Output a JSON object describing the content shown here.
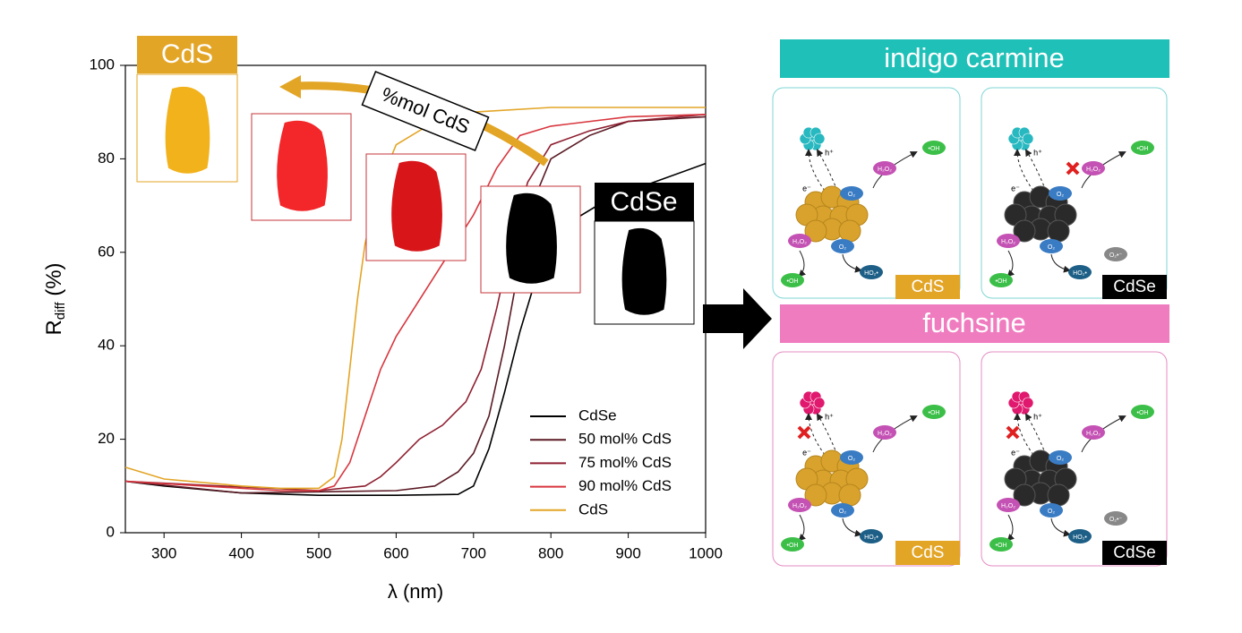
{
  "chart_data": {
    "type": "line",
    "xlabel": "λ (nm)",
    "ylabel": {
      "main": "R",
      "sub": "diff",
      "unit": " (%)"
    },
    "xlim": [
      250,
      1000
    ],
    "xticks": [
      300,
      400,
      500,
      600,
      700,
      800,
      900,
      1000
    ],
    "ylim": [
      0,
      100
    ],
    "yticks": [
      0,
      20,
      40,
      60,
      80,
      100
    ],
    "legend": "lower right",
    "series": [
      {
        "name": "CdSe",
        "color": "#000000",
        "x": [
          250,
          300,
          400,
          500,
          600,
          680,
          700,
          720,
          740,
          760,
          780,
          800,
          830,
          870,
          900,
          950,
          1000
        ],
        "values": [
          11,
          10,
          8.5,
          8,
          8,
          8.2,
          10,
          18,
          30,
          43,
          54,
          62,
          67,
          71,
          73,
          76,
          79
        ]
      },
      {
        "name": "50 mol% CdS",
        "color": "#5a1a24",
        "x": [
          250,
          400,
          600,
          650,
          680,
          700,
          720,
          740,
          760,
          780,
          800,
          850,
          900,
          1000
        ],
        "values": [
          11,
          8.5,
          9,
          10,
          13,
          17,
          25,
          40,
          58,
          72,
          80,
          85,
          88,
          89
        ]
      },
      {
        "name": "75 mol% CdS",
        "color": "#8e1f30",
        "x": [
          250,
          500,
          560,
          580,
          600,
          630,
          660,
          690,
          710,
          730,
          750,
          770,
          800,
          850,
          900,
          1000
        ],
        "values": [
          11,
          9,
          10,
          12,
          15,
          20,
          23,
          28,
          35,
          48,
          63,
          75,
          83,
          86,
          88,
          89.5
        ]
      },
      {
        "name": "90 mol% CdS",
        "color": "#d8363e",
        "x": [
          250,
          450,
          500,
          520,
          540,
          560,
          580,
          600,
          650,
          700,
          730,
          760,
          800,
          900,
          1000
        ],
        "values": [
          11,
          9,
          9,
          10,
          15,
          25,
          35,
          42,
          55,
          68,
          78,
          85,
          87,
          89,
          89.5
        ]
      },
      {
        "name": "CdS",
        "color": "#e3a526",
        "x": [
          250,
          300,
          400,
          450,
          500,
          520,
          530,
          540,
          550,
          560,
          580,
          600,
          650,
          700,
          800,
          1000
        ],
        "values": [
          14,
          11.5,
          10,
          9.5,
          9.5,
          12,
          20,
          35,
          50,
          62,
          75,
          83,
          88,
          90,
          91,
          91
        ]
      }
    ],
    "annotation": "%mol CdS",
    "insets": [
      "CdS",
      "CdSe"
    ]
  },
  "diagram": {
    "banners": [
      "indigo carmine",
      "fuchsine"
    ],
    "panels": [
      {
        "label": "CdS",
        "label_color": "#e3a526",
        "dye_color": "#27b8c0",
        "species": [
          {
            "label": "e⁻",
            "color": "none"
          },
          {
            "label": "h⁺",
            "color": "none"
          },
          {
            "label": "H₂O₂",
            "color": "#c452b4"
          },
          {
            "label": "•OH",
            "color": "#3cbf48"
          },
          {
            "label": "O₂",
            "color": "#3a7cc4"
          },
          {
            "label": "H₂O₂",
            "color": "#c452b4"
          },
          {
            "label": "O₂",
            "color": "#3a7cc4"
          },
          {
            "label": "•OH",
            "color": "#3cbf48"
          },
          {
            "label": "HO₂•",
            "color": "#1d5f86"
          }
        ]
      },
      {
        "label": "CdSe",
        "label_color": "#000000",
        "dye_color": "#27b8c0",
        "species": [
          {
            "label": "e⁻",
            "color": "none"
          },
          {
            "label": "h⁺",
            "color": "none"
          },
          {
            "label": "H₂O₂",
            "color": "#c452b4"
          },
          {
            "label": "•OH",
            "color": "#3cbf48"
          },
          {
            "label": "O₂",
            "color": "#3a7cc4"
          },
          {
            "label": "H₂O₂",
            "color": "#c452b4"
          },
          {
            "label": "O₂",
            "color": "#3a7cc4"
          },
          {
            "label": "•OH",
            "color": "#3cbf48"
          },
          {
            "label": "HO₂•",
            "color": "#1d5f86"
          },
          {
            "label": "O₂•⁻",
            "color": "#888888"
          }
        ]
      },
      {
        "label": "CdS",
        "label_color": "#e3a526",
        "dye_color": "#e0186e",
        "species": [
          {
            "label": "e⁻",
            "color": "none"
          },
          {
            "label": "h⁺",
            "color": "none"
          },
          {
            "label": "H₂O₂",
            "color": "#c452b4"
          },
          {
            "label": "•OH",
            "color": "#3cbf48"
          },
          {
            "label": "O₂",
            "color": "#3a7cc4"
          },
          {
            "label": "H₂O₂",
            "color": "#c452b4"
          },
          {
            "label": "O₂",
            "color": "#3a7cc4"
          },
          {
            "label": "•OH",
            "color": "#3cbf48"
          },
          {
            "label": "HO₂•",
            "color": "#1d5f86"
          }
        ]
      },
      {
        "label": "CdSe",
        "label_color": "#000000",
        "dye_color": "#e0186e",
        "species": [
          {
            "label": "e⁻",
            "color": "none"
          },
          {
            "label": "h⁺",
            "color": "none"
          },
          {
            "label": "H₂O₂",
            "color": "#c452b4"
          },
          {
            "label": "•OH",
            "color": "#3cbf48"
          },
          {
            "label": "O₂",
            "color": "#3a7cc4"
          },
          {
            "label": "H₂O₂",
            "color": "#c452b4"
          },
          {
            "label": "O₂",
            "color": "#3a7cc4"
          },
          {
            "label": "•OH",
            "color": "#3cbf48"
          },
          {
            "label": "HO₂•",
            "color": "#1d5f86"
          },
          {
            "label": "O₂•⁻",
            "color": "#888888"
          }
        ]
      }
    ]
  }
}
